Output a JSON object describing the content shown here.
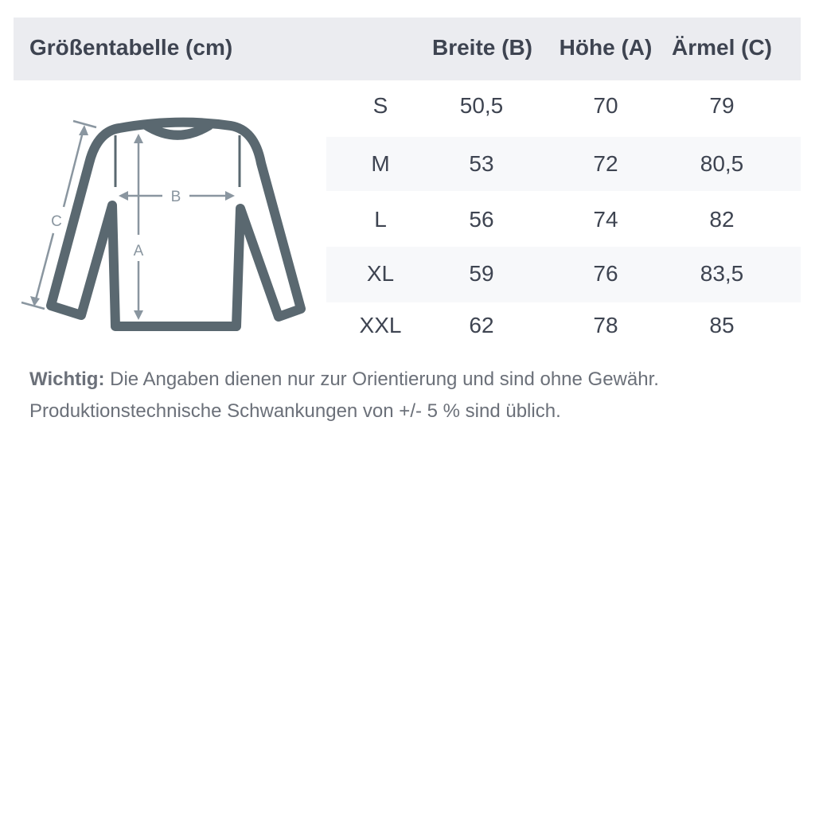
{
  "header": {
    "title": "Größentabelle (cm)",
    "columns": [
      "Breite (B)",
      "Höhe (A)",
      "Ärmel (C)"
    ]
  },
  "rows": [
    {
      "size": "S",
      "values": [
        "50,5",
        "70",
        "79"
      ]
    },
    {
      "size": "M",
      "values": [
        "53",
        "72",
        "80,5"
      ]
    },
    {
      "size": "L",
      "values": [
        "56",
        "74",
        "82"
      ]
    },
    {
      "size": "XL",
      "values": [
        "59",
        "76",
        "83,5"
      ]
    },
    {
      "size": "XXL",
      "values": [
        "62",
        "78",
        "85"
      ]
    }
  ],
  "diagram": {
    "label_a": "A",
    "label_b": "B",
    "label_c": "C"
  },
  "note": {
    "bold": "Wichtig:",
    "line1": " Die Angaben dienen nur zur Orientierung und sind ohne Gewähr.",
    "line2": "Produktionstechnische Schwankungen von +/- 5 % sind üblich."
  },
  "colors": {
    "header_bg": "#ebecf0",
    "text": "#3e4451",
    "stripe": "#f7f8fa",
    "garment": "#5a6870",
    "measure": "#8a96a0"
  }
}
